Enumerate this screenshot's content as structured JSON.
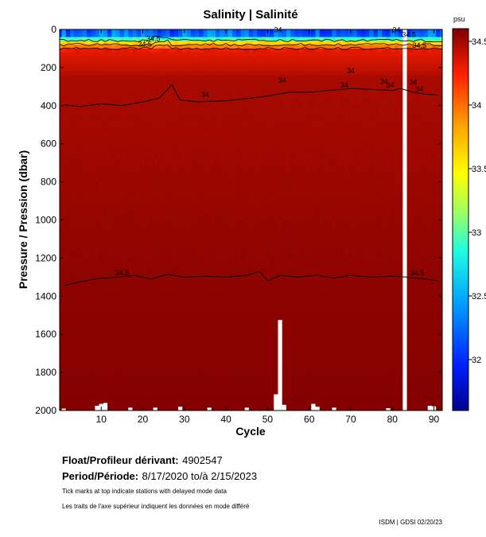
{
  "chart_data": {
    "type": "heatmap",
    "title": "Salinity | Salinité",
    "xlabel": "Cycle",
    "ylabel": "Pressure / Pression (dbar)",
    "xlim": [
      0,
      92
    ],
    "ylim": [
      2000,
      0
    ],
    "x_ticks": [
      "10",
      "20",
      "30",
      "40",
      "50",
      "60",
      "70",
      "80",
      "90"
    ],
    "y_ticks": [
      "0",
      "200",
      "400",
      "600",
      "800",
      "1000",
      "1200",
      "1400",
      "1600",
      "1800",
      "2000"
    ],
    "colorbar": {
      "unit": "psu",
      "range": [
        31.6,
        34.6
      ],
      "ticks": [
        "32",
        "32.5",
        "33",
        "33.5",
        "34",
        "34.5"
      ]
    },
    "contour_levels": [
      "34",
      "34.5"
    ],
    "contour_labels": [
      {
        "text": "34.5",
        "x": 22.5,
        "y": 60
      },
      {
        "text": "34.5",
        "x": 20.5,
        "y": 90
      },
      {
        "text": "34.5",
        "x": 84,
        "y": 40
      },
      {
        "text": "34.5",
        "x": 86.5,
        "y": 95
      },
      {
        "text": "34",
        "x": 52.5,
        "y": 15
      },
      {
        "text": "34",
        "x": 81,
        "y": 15
      },
      {
        "text": "34",
        "x": 35,
        "y": 355
      },
      {
        "text": "34",
        "x": 53.5,
        "y": 280
      },
      {
        "text": "34",
        "x": 68.5,
        "y": 305
      },
      {
        "text": "34",
        "x": 70,
        "y": 230
      },
      {
        "text": "34",
        "x": 78,
        "y": 285
      },
      {
        "text": "34",
        "x": 79.5,
        "y": 305
      },
      {
        "text": "34",
        "x": 85,
        "y": 290
      },
      {
        "text": "34",
        "x": 86.5,
        "y": 325
      },
      {
        "text": "34.5",
        "x": 15,
        "y": 1290
      },
      {
        "text": "34.5",
        "x": 86,
        "y": 1290
      }
    ],
    "contour_34_depth": [
      {
        "x": 1,
        "y": 395
      },
      {
        "x": 5,
        "y": 405
      },
      {
        "x": 10,
        "y": 390
      },
      {
        "x": 15,
        "y": 400
      },
      {
        "x": 20,
        "y": 380
      },
      {
        "x": 24,
        "y": 360
      },
      {
        "x": 27,
        "y": 290
      },
      {
        "x": 29,
        "y": 370
      },
      {
        "x": 33,
        "y": 380
      },
      {
        "x": 40,
        "y": 375
      },
      {
        "x": 46,
        "y": 360
      },
      {
        "x": 50,
        "y": 350
      },
      {
        "x": 55,
        "y": 330
      },
      {
        "x": 60,
        "y": 330
      },
      {
        "x": 65,
        "y": 320
      },
      {
        "x": 70,
        "y": 310
      },
      {
        "x": 75,
        "y": 315
      },
      {
        "x": 80,
        "y": 320
      },
      {
        "x": 82,
        "y": 310
      },
      {
        "x": 85,
        "y": 330
      },
      {
        "x": 88,
        "y": 340
      },
      {
        "x": 91,
        "y": 345
      }
    ],
    "contour_345_depth": [
      {
        "x": 1,
        "y": 1345
      },
      {
        "x": 5,
        "y": 1325
      },
      {
        "x": 10,
        "y": 1305
      },
      {
        "x": 14,
        "y": 1300
      },
      {
        "x": 18,
        "y": 1290
      },
      {
        "x": 22,
        "y": 1310
      },
      {
        "x": 26,
        "y": 1285
      },
      {
        "x": 30,
        "y": 1300
      },
      {
        "x": 35,
        "y": 1295
      },
      {
        "x": 40,
        "y": 1300
      },
      {
        "x": 45,
        "y": 1290
      },
      {
        "x": 48,
        "y": 1270
      },
      {
        "x": 50,
        "y": 1320
      },
      {
        "x": 53,
        "y": 1290
      },
      {
        "x": 57,
        "y": 1300
      },
      {
        "x": 62,
        "y": 1290
      },
      {
        "x": 66,
        "y": 1305
      },
      {
        "x": 70,
        "y": 1290
      },
      {
        "x": 75,
        "y": 1300
      },
      {
        "x": 80,
        "y": 1295
      },
      {
        "x": 84,
        "y": 1300
      },
      {
        "x": 88,
        "y": 1310
      },
      {
        "x": 91,
        "y": 1320
      }
    ],
    "bottom_gaps": [
      {
        "x": 1,
        "top": 1990
      },
      {
        "x": 9,
        "top": 1975
      },
      {
        "x": 10,
        "top": 1965
      },
      {
        "x": 11,
        "top": 1960
      },
      {
        "x": 17,
        "top": 1985
      },
      {
        "x": 23,
        "top": 1985
      },
      {
        "x": 29,
        "top": 1980
      },
      {
        "x": 36,
        "top": 1985
      },
      {
        "x": 45,
        "top": 1985
      },
      {
        "x": 52,
        "top": 1915
      },
      {
        "x": 53,
        "top": 1525
      },
      {
        "x": 54,
        "top": 1970
      },
      {
        "x": 61,
        "top": 1965
      },
      {
        "x": 62,
        "top": 1980
      },
      {
        "x": 66,
        "top": 1985
      },
      {
        "x": 79,
        "top": 1988
      },
      {
        "x": 89,
        "top": 1975
      },
      {
        "x": 90,
        "top": 1978
      }
    ],
    "missing_cycle": 83
  },
  "info": {
    "float_label": "Float/Profileur dérivant:",
    "float_value": "4902547",
    "period_label": "Period/Période:",
    "period_value": "8/17/2020  to/à  2/15/2023",
    "note_en": "Tick marks at top indicate stations with delayed mode data",
    "note_fr": "Les traits de l'axe supérieur indiquent les données en mode différé",
    "credit": "ISDM | GDSI  02/20/23"
  }
}
